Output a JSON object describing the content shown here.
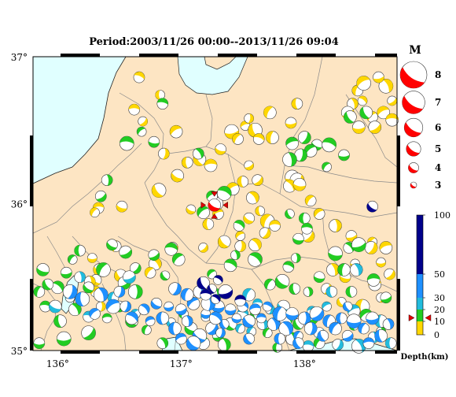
{
  "title": "Period:2003/11/26 00:00--2013/11/26 09:04",
  "map": {
    "lon_range": [
      135.8,
      138.75
    ],
    "lat_range": [
      35.0,
      37.0
    ],
    "x_ticks": [
      {
        "value": 136,
        "label": "136°"
      },
      {
        "value": 137,
        "label": "137°"
      },
      {
        "value": 138,
        "label": "138°"
      }
    ],
    "y_ticks": [
      {
        "value": 37,
        "label": "37°"
      },
      {
        "value": 36,
        "label": "36°"
      },
      {
        "value": 35,
        "label": "35°"
      }
    ],
    "colors": {
      "land": "#fde5c3",
      "sea": "#e0ffff",
      "border": "#8a8a8a",
      "coast": "#222222"
    }
  },
  "magnitude_legend": {
    "title": "M",
    "entries": [
      {
        "label": "8",
        "magnitude": 8
      },
      {
        "label": "7",
        "magnitude": 7
      },
      {
        "label": "6",
        "magnitude": 6
      },
      {
        "label": "5",
        "magnitude": 5
      },
      {
        "label": "4",
        "magnitude": 4
      },
      {
        "label": "3",
        "magnitude": 3
      }
    ]
  },
  "depth_scale": {
    "title": "Depth(km)",
    "ticks": [
      {
        "value": 100,
        "label": "100"
      },
      {
        "value": 50,
        "label": "50"
      },
      {
        "value": 30,
        "label": "30"
      },
      {
        "value": 20,
        "label": "20"
      },
      {
        "value": 10,
        "label": "10"
      },
      {
        "value": 0,
        "label": "0"
      }
    ],
    "bands": [
      {
        "from": 0,
        "to": 10,
        "color": "#ffd700"
      },
      {
        "from": 10,
        "to": 20,
        "color": "#22cc22"
      },
      {
        "from": 20,
        "to": 30,
        "color": "#22bbdd"
      },
      {
        "from": 30,
        "to": 50,
        "color": "#1e90ff"
      },
      {
        "from": 50,
        "to": 100,
        "color": "#00008b"
      }
    ],
    "marker_depth": 13
  },
  "latest_event": {
    "lon": 137.27,
    "lat": 35.99,
    "magnitude": 4.5,
    "color": "#ff0000"
  },
  "clusters": [
    {
      "color": "#ffd700",
      "points": [
        [
          136.66,
          36.86
        ],
        [
          136.83,
          36.74
        ],
        [
          136.62,
          36.64
        ],
        [
          136.69,
          36.56
        ],
        [
          136.96,
          36.49
        ],
        [
          136.86,
          36.34
        ],
        [
          136.97,
          36.19
        ],
        [
          137.05,
          36.28
        ],
        [
          137.15,
          36.3
        ],
        [
          137.24,
          36.26
        ],
        [
          137.32,
          36.37
        ],
        [
          137.41,
          36.49
        ],
        [
          137.52,
          36.53
        ],
        [
          137.6,
          36.5
        ],
        [
          137.63,
          36.44
        ],
        [
          137.74,
          36.45
        ],
        [
          137.89,
          36.55
        ],
        [
          137.94,
          36.68
        ],
        [
          137.72,
          36.62
        ],
        [
          137.55,
          36.58
        ],
        [
          137.46,
          36.44
        ],
        [
          137.55,
          36.26
        ],
        [
          137.62,
          36.16
        ],
        [
          137.5,
          36.15
        ],
        [
          137.42,
          36.1
        ],
        [
          137.58,
          36.04
        ],
        [
          137.64,
          35.95
        ],
        [
          137.55,
          35.9
        ],
        [
          137.48,
          35.78
        ],
        [
          137.6,
          35.72
        ],
        [
          137.7,
          35.88
        ],
        [
          137.76,
          35.85
        ],
        [
          137.68,
          35.8
        ],
        [
          137.3,
          35.93
        ],
        [
          137.22,
          35.86
        ],
        [
          137.35,
          35.74
        ],
        [
          137.48,
          35.71
        ],
        [
          137.9,
          36.18
        ],
        [
          137.94,
          36.16
        ],
        [
          137.88,
          36.12
        ],
        [
          137.96,
          36.13
        ],
        [
          138.05,
          36.02
        ],
        [
          138.12,
          35.93
        ],
        [
          138.25,
          35.85
        ],
        [
          138.38,
          35.78
        ],
        [
          138.55,
          35.74
        ],
        [
          138.66,
          35.7
        ],
        [
          138.62,
          35.6
        ],
        [
          138.69,
          35.52
        ],
        [
          138.57,
          35.45
        ],
        [
          138.62,
          35.36
        ],
        [
          138.47,
          35.3
        ],
        [
          138.3,
          35.33
        ],
        [
          138.23,
          35.55
        ],
        [
          138.03,
          35.78
        ],
        [
          138.18,
          35.42
        ],
        [
          138.33,
          35.5
        ],
        [
          138.41,
          35.59
        ],
        [
          138.54,
          35.7
        ],
        [
          136.82,
          36.09
        ],
        [
          136.52,
          35.98
        ],
        [
          136.33,
          35.97
        ],
        [
          136.3,
          35.94
        ],
        [
          136.47,
          35.71
        ],
        [
          136.51,
          35.51
        ],
        [
          136.28,
          35.63
        ],
        [
          136.34,
          35.55
        ],
        [
          136.31,
          35.48
        ],
        [
          136.31,
          35.4
        ],
        [
          136.35,
          35.3
        ],
        [
          136.26,
          35.47
        ],
        [
          136.93,
          35.7
        ],
        [
          136.79,
          35.59
        ],
        [
          136.75,
          35.53
        ],
        [
          137.18,
          35.7
        ],
        [
          137.08,
          35.96
        ],
        [
          138.43,
          36.77
        ],
        [
          138.47,
          36.7
        ],
        [
          138.55,
          36.59
        ],
        [
          138.57,
          36.52
        ],
        [
          138.64,
          36.62
        ],
        [
          138.71,
          36.7
        ],
        [
          138.71,
          36.57
        ],
        [
          138.66,
          36.8
        ],
        [
          138.6,
          36.86
        ],
        [
          138.48,
          36.82
        ],
        [
          138.39,
          36.68
        ],
        [
          138.35,
          36.62
        ],
        [
          138.44,
          36.52
        ]
      ]
    },
    {
      "color": "#22cc22",
      "points": [
        [
          138.0,
          36.45
        ],
        [
          138.1,
          36.4
        ],
        [
          138.2,
          36.4
        ],
        [
          138.05,
          36.36
        ],
        [
          137.97,
          36.33
        ],
        [
          137.9,
          36.41
        ],
        [
          137.88,
          36.3
        ],
        [
          138.18,
          36.25
        ],
        [
          138.32,
          36.33
        ],
        [
          138.37,
          36.59
        ],
        [
          138.5,
          36.62
        ],
        [
          136.85,
          36.68
        ],
        [
          136.78,
          36.42
        ],
        [
          136.56,
          36.41
        ],
        [
          136.68,
          36.49
        ],
        [
          137.14,
          36.34
        ],
        [
          136.4,
          36.16
        ],
        [
          136.35,
          36.05
        ],
        [
          137.18,
          35.94
        ],
        [
          137.29,
          36.0
        ],
        [
          137.25,
          36.05
        ],
        [
          137.35,
          36.07
        ],
        [
          137.88,
          35.93
        ],
        [
          138.0,
          35.9
        ],
        [
          138.02,
          35.83
        ],
        [
          137.95,
          35.76
        ],
        [
          137.93,
          35.63
        ],
        [
          137.87,
          35.57
        ],
        [
          137.82,
          35.47
        ],
        [
          137.92,
          35.42
        ],
        [
          138.12,
          35.5
        ],
        [
          138.03,
          35.4
        ],
        [
          138.25,
          35.66
        ],
        [
          138.32,
          35.55
        ],
        [
          138.38,
          35.4
        ],
        [
          138.56,
          35.48
        ],
        [
          138.36,
          35.7
        ],
        [
          138.44,
          35.72
        ],
        [
          138.66,
          35.36
        ],
        [
          138.5,
          35.24
        ],
        [
          138.4,
          35.17
        ],
        [
          138.62,
          35.13
        ],
        [
          138.06,
          35.22
        ],
        [
          138.12,
          35.05
        ],
        [
          137.95,
          35.18
        ],
        [
          137.85,
          35.22
        ],
        [
          137.9,
          35.08
        ],
        [
          137.47,
          35.85
        ],
        [
          137.44,
          35.65
        ],
        [
          137.6,
          35.62
        ],
        [
          137.72,
          35.45
        ],
        [
          137.4,
          35.58
        ],
        [
          137.25,
          35.52
        ],
        [
          137.28,
          35.38
        ],
        [
          136.92,
          35.69
        ],
        [
          136.98,
          35.62
        ],
        [
          136.87,
          35.51
        ],
        [
          136.78,
          35.65
        ],
        [
          136.55,
          35.67
        ],
        [
          136.63,
          35.56
        ],
        [
          136.44,
          35.72
        ],
        [
          136.37,
          35.55
        ],
        [
          136.18,
          35.68
        ],
        [
          136.12,
          35.62
        ],
        [
          136.07,
          35.53
        ],
        [
          136.0,
          35.43
        ],
        [
          135.88,
          35.55
        ],
        [
          135.92,
          35.45
        ],
        [
          135.85,
          35.4
        ],
        [
          135.9,
          35.3
        ],
        [
          136.02,
          35.2
        ],
        [
          136.14,
          35.28
        ],
        [
          136.25,
          35.43
        ],
        [
          136.4,
          35.22
        ],
        [
          136.5,
          35.3
        ],
        [
          136.6,
          35.2
        ],
        [
          136.72,
          35.14
        ],
        [
          136.85,
          35.05
        ],
        [
          136.25,
          35.12
        ],
        [
          135.85,
          35.05
        ],
        [
          136.05,
          35.08
        ],
        [
          136.63,
          35.4
        ],
        [
          136.54,
          35.46
        ],
        [
          137.02,
          35.25
        ],
        [
          137.08,
          35.15
        ],
        [
          137.18,
          35.05
        ],
        [
          137.3,
          35.1
        ],
        [
          137.4,
          35.18
        ],
        [
          137.35,
          35.04
        ],
        [
          137.6,
          35.25
        ],
        [
          137.7,
          35.12
        ],
        [
          137.78,
          35.02
        ]
      ]
    },
    {
      "color": "#22bbdd",
      "points": [
        [
          136.25,
          35.23
        ],
        [
          136.58,
          35.5
        ],
        [
          136.63,
          35.25
        ],
        [
          136.92,
          35.19
        ],
        [
          137.48,
          35.15
        ],
        [
          137.57,
          35.13
        ],
        [
          138.18,
          35.3
        ],
        [
          138.27,
          35.04
        ],
        [
          138.03,
          35.03
        ],
        [
          138.44,
          35.03
        ],
        [
          138.56,
          35.09
        ],
        [
          138.7,
          35.05
        ],
        [
          138.62,
          35.2
        ],
        [
          138.4,
          35.27
        ],
        [
          138.12,
          35.12
        ],
        [
          138.06,
          35.27
        ],
        [
          138.22,
          35.4
        ],
        [
          138.42,
          35.55
        ],
        [
          136.18,
          35.5
        ],
        [
          136.1,
          35.36
        ],
        [
          135.98,
          35.3
        ],
        [
          136.45,
          35.36
        ],
        [
          137.2,
          35.23
        ],
        [
          137.55,
          35.38
        ],
        [
          137.62,
          35.32
        ],
        [
          137.5,
          35.25
        ],
        [
          137.72,
          35.28
        ],
        [
          137.66,
          35.18
        ],
        [
          137.83,
          35.3
        ]
      ]
    },
    {
      "color": "#1e90ff",
      "points": [
        [
          136.1,
          35.4
        ],
        [
          136.2,
          35.35
        ],
        [
          136.3,
          35.25
        ],
        [
          136.35,
          35.38
        ],
        [
          136.45,
          35.3
        ],
        [
          136.5,
          35.4
        ],
        [
          136.55,
          35.3
        ],
        [
          136.6,
          35.22
        ],
        [
          136.7,
          35.28
        ],
        [
          136.75,
          35.2
        ],
        [
          136.8,
          35.32
        ],
        [
          136.85,
          35.22
        ],
        [
          136.9,
          35.3
        ],
        [
          136.95,
          35.15
        ],
        [
          137.0,
          35.28
        ],
        [
          137.05,
          35.2
        ],
        [
          137.1,
          35.32
        ],
        [
          137.15,
          35.1
        ],
        [
          137.2,
          35.25
        ],
        [
          137.25,
          35.15
        ],
        [
          137.3,
          35.3
        ],
        [
          137.35,
          35.18
        ],
        [
          137.4,
          35.28
        ],
        [
          137.45,
          35.22
        ],
        [
          137.5,
          35.3
        ],
        [
          137.55,
          35.2
        ],
        [
          137.6,
          35.28
        ],
        [
          137.65,
          35.22
        ],
        [
          137.7,
          35.3
        ],
        [
          137.75,
          35.18
        ],
        [
          137.8,
          35.25
        ],
        [
          137.85,
          35.15
        ],
        [
          137.9,
          35.25
        ],
        [
          137.95,
          35.1
        ],
        [
          138.0,
          35.22
        ],
        [
          138.05,
          35.15
        ],
        [
          138.1,
          35.25
        ],
        [
          138.15,
          35.1
        ],
        [
          138.2,
          35.2
        ],
        [
          138.25,
          35.15
        ],
        [
          138.3,
          35.22
        ],
        [
          138.35,
          35.1
        ],
        [
          138.4,
          35.2
        ],
        [
          138.48,
          35.15
        ],
        [
          138.55,
          35.22
        ],
        [
          138.62,
          35.1
        ],
        [
          138.68,
          35.18
        ],
        [
          136.95,
          35.42
        ],
        [
          137.05,
          35.38
        ],
        [
          137.15,
          35.4
        ],
        [
          137.22,
          35.32
        ],
        [
          137.28,
          35.22
        ],
        [
          137.32,
          35.12
        ],
        [
          137.1,
          35.05
        ],
        [
          137.0,
          35.08
        ],
        [
          137.55,
          35.08
        ],
        [
          137.8,
          35.08
        ],
        [
          137.95,
          35.05
        ],
        [
          138.35,
          35.3
        ],
        [
          138.52,
          35.05
        ]
      ]
    },
    {
      "color": "#00008b",
      "points": [
        [
          138.55,
          35.98
        ],
        [
          137.18,
          35.46
        ],
        [
          137.25,
          35.42
        ],
        [
          137.3,
          35.48
        ],
        [
          137.2,
          35.38
        ],
        [
          137.28,
          35.35
        ],
        [
          137.36,
          35.4
        ],
        [
          137.48,
          35.34
        ]
      ]
    }
  ]
}
